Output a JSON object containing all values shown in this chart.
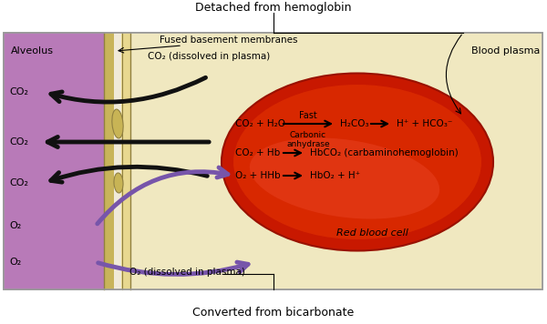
{
  "title_top": "Detached from hemoglobin",
  "title_bottom": "Converted from bicarbonate",
  "alveolus_label": "Alveolus",
  "blood_plasma_label": "Blood plasma",
  "rbc_label": "Red blood cell",
  "fused_membranes_label": "Fused basement membranes",
  "co2_plasma_label": "CO₂ (dissolved in plasma)",
  "o2_plasma_label": "O₂ (dissolved in plasma)",
  "co2_labels": [
    "CO₂",
    "CO₂",
    "CO₂"
  ],
  "o2_labels": [
    "O₂",
    "O₂"
  ],
  "reaction1_left": "CO₂ + H₂O",
  "reaction1_fast": "Fast",
  "reaction1_mid": "H₂CO₃",
  "reaction1_right": "H⁺ + HCO₃⁻",
  "reaction1_enzyme": "Carbonic\nanhydrase",
  "reaction2_left": "CO₂ + Hb",
  "reaction2_right": "HbCO₂ (carbaminohemoglobin)",
  "reaction3_left": "O₂ + HHb",
  "reaction3_right": "HbO₂ + H⁺",
  "alveolus_color": "#b87ab8",
  "plasma_color": "#f0e8c0",
  "rbc_color_outer": "#c81800",
  "rbc_color_inner": "#d82800",
  "rbc_highlight": "#e84020",
  "wall_color1": "#c8b45a",
  "wall_color2": "#e8d890",
  "wall_color3": "#d8c870",
  "wall_line_color": "#908040",
  "border_color": "#999999",
  "purple_arrow": "#7755aa",
  "black_arrow": "#111111"
}
